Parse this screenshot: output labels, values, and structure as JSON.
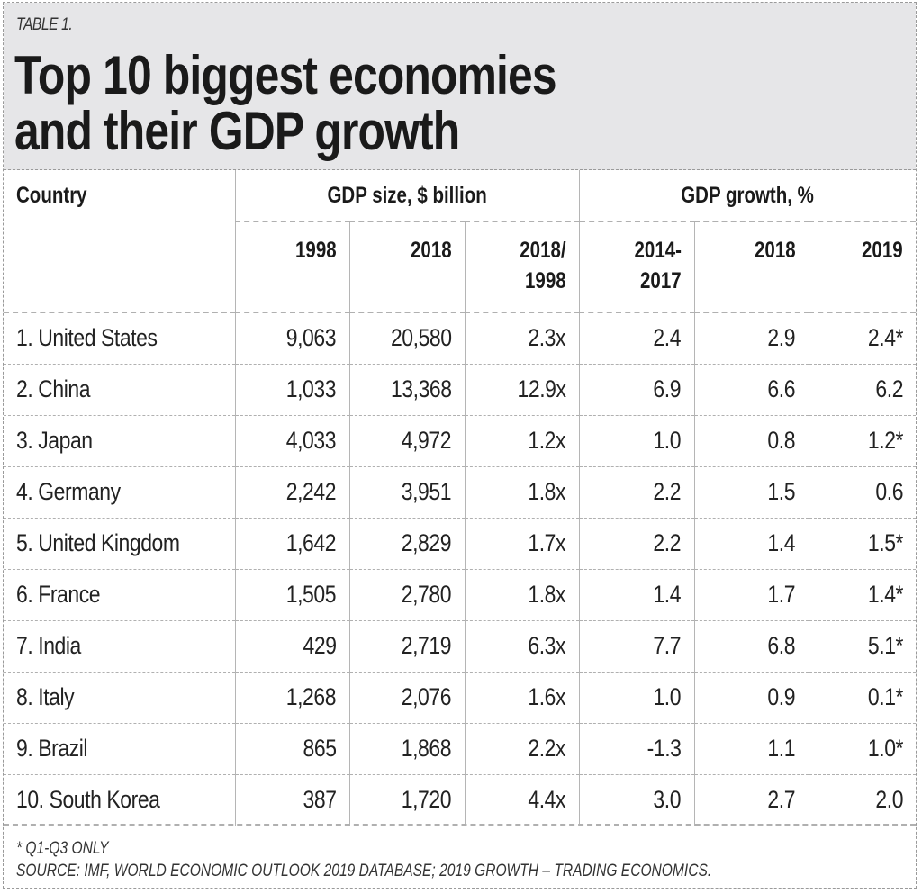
{
  "header": {
    "label": "TABLE 1.",
    "title_line1": "Top 10 biggest economies",
    "title_line2": "and their GDP growth"
  },
  "columns": {
    "country": "Country",
    "group_size": "GDP size, $ billion",
    "group_growth": "GDP growth, %",
    "sub": [
      "1998",
      "2018",
      "2018/",
      "1998",
      "2014-",
      "2017",
      "2018",
      "2019"
    ]
  },
  "rows": [
    {
      "country": "1. United States",
      "gdp1998": "9,063",
      "gdp2018": "20,580",
      "ratio": "2.3x",
      "g1417": "2.4",
      "g2018": "2.9",
      "g2019": "2.4*"
    },
    {
      "country": "2. China",
      "gdp1998": "1,033",
      "gdp2018": "13,368",
      "ratio": "12.9x",
      "g1417": "6.9",
      "g2018": "6.6",
      "g2019": "6.2"
    },
    {
      "country": "3. Japan",
      "gdp1998": "4,033",
      "gdp2018": "4,972",
      "ratio": "1.2x",
      "g1417": "1.0",
      "g2018": "0.8",
      "g2019": "1.2*"
    },
    {
      "country": "4. Germany",
      "gdp1998": "2,242",
      "gdp2018": "3,951",
      "ratio": "1.8x",
      "g1417": "2.2",
      "g2018": "1.5",
      "g2019": "0.6"
    },
    {
      "country": "5. United Kingdom",
      "gdp1998": "1,642",
      "gdp2018": "2,829",
      "ratio": "1.7x",
      "g1417": "2.2",
      "g2018": "1.4",
      "g2019": "1.5*"
    },
    {
      "country": "6. France",
      "gdp1998": "1,505",
      "gdp2018": "2,780",
      "ratio": "1.8x",
      "g1417": "1.4",
      "g2018": "1.7",
      "g2019": "1.4*"
    },
    {
      "country": "7. India",
      "gdp1998": "429",
      "gdp2018": "2,719",
      "ratio": "6.3x",
      "g1417": "7.7",
      "g2018": "6.8",
      "g2019": "5.1*"
    },
    {
      "country": "8. Italy",
      "gdp1998": "1,268",
      "gdp2018": "2,076",
      "ratio": "1.6x",
      "g1417": "1.0",
      "g2018": "0.9",
      "g2019": "0.1*"
    },
    {
      "country": "9. Brazil",
      "gdp1998": "865",
      "gdp2018": "1,868",
      "ratio": "2.2x",
      "g1417": "-1.3",
      "g2018": "1.1",
      "g2019": "1.0*"
    },
    {
      "country": "10. South Korea",
      "gdp1998": "387",
      "gdp2018": "1,720",
      "ratio": "4.4x",
      "g1417": "3.0",
      "g2018": "2.7",
      "g2019": "2.0"
    }
  ],
  "footer": {
    "note": "* Q1-Q3 ONLY",
    "source": "SOURCE: IMF, WORLD ECONOMIC OUTLOOK 2019 DATABASE; 2019 GROWTH – TRADING ECONOMICS."
  },
  "colors": {
    "header_bg": "#e6e6e8",
    "text": "#1a1a1a",
    "rule": "#b0b0b0"
  }
}
